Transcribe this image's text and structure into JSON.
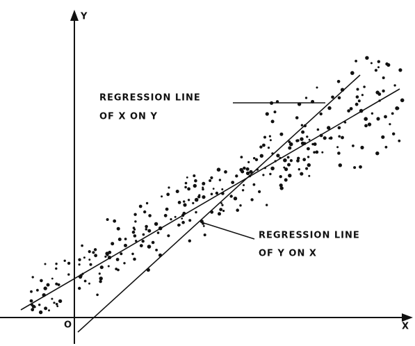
{
  "axes": {
    "y_label": "Y",
    "x_label": "X",
    "origin_label": "O"
  },
  "annotations": [
    {
      "lines": [
        "REGRESSION LINE",
        "OF X ON Y"
      ]
    },
    {
      "lines": [
        "REGRESSION LINE",
        "OF Y ON X"
      ]
    }
  ]
}
